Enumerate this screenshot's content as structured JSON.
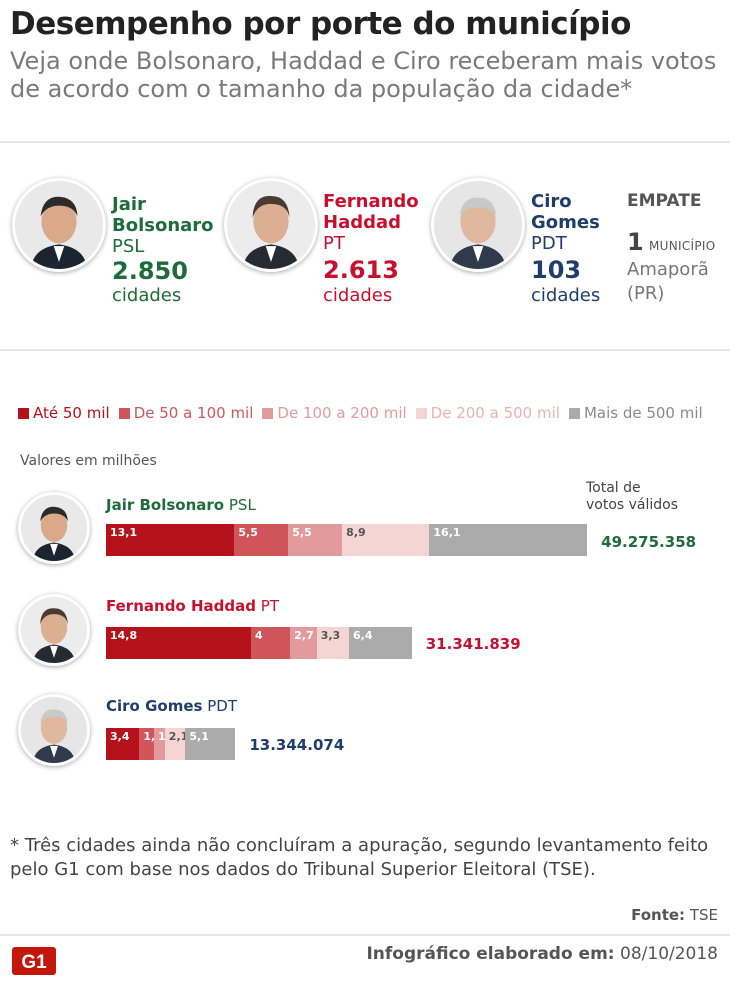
{
  "header": {
    "title": "Desempenho por porte do município",
    "subtitle": "Veja onde Bolsonaro, Haddad e Ciro receberam mais votos de acordo com o tamanho da população da cidade*"
  },
  "colors": {
    "bolsonaro": "#1e6b3c",
    "haddad": "#c8102e",
    "ciro": "#1f3d6b"
  },
  "summary": {
    "candidates": [
      {
        "first": "Jair",
        "last": "Bolsonaro",
        "party": "PSL",
        "count": "2.850",
        "unit": "cidades"
      },
      {
        "first": "Fernando",
        "last": "Haddad",
        "party": "PT",
        "count": "2.613",
        "unit": "cidades"
      },
      {
        "first": "Ciro",
        "last": "Gomes",
        "party": "PDT",
        "count": "103",
        "unit": "cidades"
      }
    ],
    "tie": {
      "label": "EMPATE",
      "count": "1",
      "count_unit": "MUNICÍPIO",
      "city": "Amaporã",
      "state": "(PR)"
    }
  },
  "chart_data": {
    "type": "bar",
    "stacked": true,
    "orientation": "horizontal",
    "units_note": "Valores em milhões",
    "total_header": [
      "Total de",
      "votos válidos"
    ],
    "legend": [
      {
        "label": "Até 50 mil",
        "color": "#b5121b"
      },
      {
        "label": "De 50 a 100 mil",
        "color": "#d0555b"
      },
      {
        "label": "De 100 a 200 mil",
        "color": "#e39a9d"
      },
      {
        "label": "De 200 a 500 mil",
        "color": "#f5d4d4"
      },
      {
        "label": "Mais de 500 mil",
        "color": "#ababab"
      }
    ],
    "categories": [
      "Jair Bolsonaro",
      "Fernando Haddad",
      "Ciro Gomes"
    ],
    "parties": [
      "PSL",
      "PT",
      "PDT"
    ],
    "series": [
      {
        "name": "Até 50 mil",
        "values": [
          13.1,
          14.8,
          3.4
        ],
        "labels": [
          "13,1",
          "14,8",
          "3,4"
        ]
      },
      {
        "name": "De 50 a 100 mil",
        "values": [
          5.5,
          4,
          1.5
        ],
        "labels": [
          "5,5",
          "4",
          "1,5"
        ]
      },
      {
        "name": "De 100 a 200 mil",
        "values": [
          5.5,
          2.7,
          1.1
        ],
        "labels": [
          "5,5",
          "2,7",
          "1,1"
        ]
      },
      {
        "name": "De 200 a 500 mil",
        "values": [
          8.9,
          3.3,
          2.1
        ],
        "labels": [
          "8,9",
          "3,3",
          "2,1"
        ]
      },
      {
        "name": "Mais de 500 mil",
        "values": [
          16.1,
          6.4,
          5.1
        ],
        "labels": [
          "16,1",
          "6,4",
          "5,1"
        ]
      }
    ],
    "totals": [
      "49.275.358",
      "31.341.839",
      "13.344.074"
    ]
  },
  "footer": {
    "note": "* Três cidades ainda não concluíram a apuração, segundo levantamento feito pelo G1 com base nos dados do Tribunal Superior Eleitoral (TSE).",
    "source_label": "Fonte:",
    "source_value": "TSE",
    "credit_label": "Infográfico elaborado em:",
    "credit_date": "08/10/2018",
    "logo_text": "G1"
  }
}
